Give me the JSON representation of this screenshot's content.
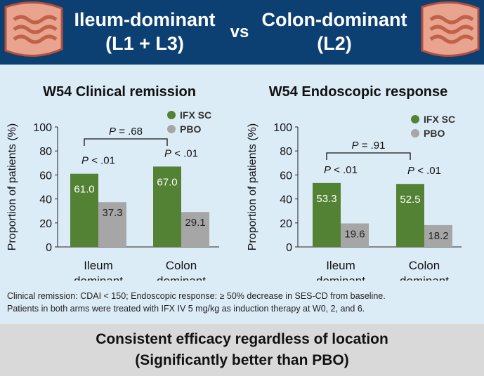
{
  "header": {
    "left_title_line1": "Ileum-dominant",
    "left_title_line2": "(L1 + L3)",
    "vs": "vs",
    "right_title_line1": "Colon-dominant",
    "right_title_line2": "(L2)"
  },
  "colors": {
    "header_bg": "#0c3f72",
    "panel_bg": "#dcecf7",
    "ifx": "#548235",
    "pbo": "#a6a6a6",
    "footer_bg": "#d9d9d9"
  },
  "icons": [
    "intestine-icon-left",
    "intestine-icon-right"
  ],
  "chart_data": [
    {
      "type": "bar",
      "title": "W54 Clinical remission",
      "ylabel": "Proportion of patients (%)",
      "ylim": [
        0,
        100
      ],
      "yticks": [
        "0",
        "20",
        "40",
        "60",
        "80",
        "100"
      ],
      "categories": [
        [
          "Ileum",
          "dominant"
        ],
        [
          "Colon",
          "dominant"
        ]
      ],
      "series": [
        {
          "name": "IFX SC",
          "values": [
            61.0,
            67.0
          ],
          "labels": [
            "61.0",
            "67.0"
          ]
        },
        {
          "name": "PBO",
          "values": [
            37.3,
            29.1
          ],
          "labels": [
            "37.3",
            "29.1"
          ]
        }
      ],
      "pvalues_within": [
        "P < .01",
        "P < .01"
      ],
      "pvalue_between": "P = .68",
      "legend": "top-right"
    },
    {
      "type": "bar",
      "title": "W54 Endoscopic response",
      "ylabel": "Proportion of patients (%)",
      "ylim": [
        0,
        100
      ],
      "yticks": [
        "0",
        "20",
        "40",
        "60",
        "80",
        "100"
      ],
      "categories": [
        [
          "Ileum",
          "dominant"
        ],
        [
          "Colon",
          "dominant"
        ]
      ],
      "series": [
        {
          "name": "IFX SC",
          "values": [
            53.3,
            52.5
          ],
          "labels": [
            "53.3",
            "52.5"
          ]
        },
        {
          "name": "PBO",
          "values": [
            19.6,
            18.2
          ],
          "labels": [
            "19.6",
            "18.2"
          ]
        }
      ],
      "pvalues_within": [
        "P < .01",
        "P < .01"
      ],
      "pvalue_between": "P = .91",
      "legend": "top-right"
    }
  ],
  "notes": {
    "line1": "Clinical remission: CDAI < 150; Endoscopic response: ≥ 50% decrease in SES-CD from baseline.",
    "line2": "Patients in both arms were treated with IFX IV 5 mg/kg as induction therapy at W0, 2, and 6."
  },
  "footer": {
    "line1": "Consistent efficacy regardless of location",
    "line2": "(Significantly better than PBO)"
  }
}
